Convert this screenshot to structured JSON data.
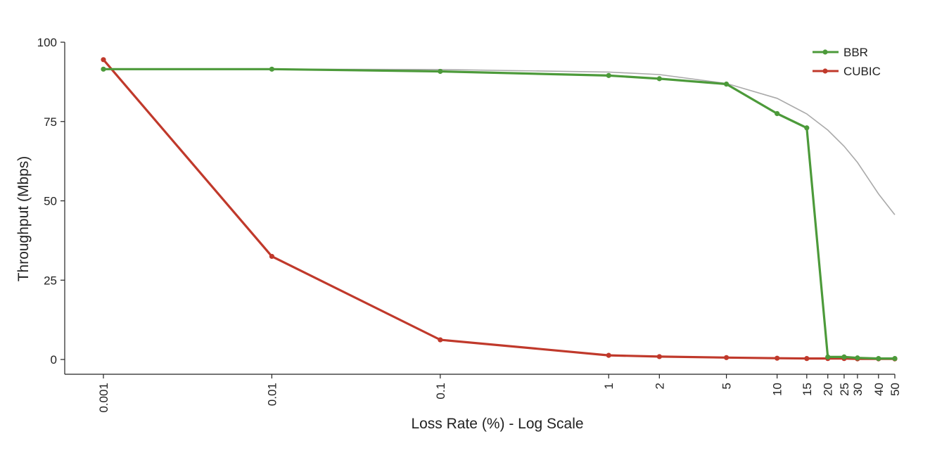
{
  "chart_data": {
    "type": "line",
    "xlabel": "Loss Rate (%) - Log Scale",
    "ylabel": "Throughput (Mbps)",
    "x_scale": "log",
    "ylim": [
      0,
      100
    ],
    "y_ticks": [
      0,
      25,
      50,
      75,
      100
    ],
    "x_ticks": [
      0.001,
      0.01,
      0.1,
      1,
      2,
      5,
      10,
      15,
      20,
      25,
      30,
      40,
      50
    ],
    "x_tick_labels": [
      "0.001",
      "0.01",
      "0.1",
      "1",
      "2",
      "5",
      "10",
      "15",
      "20",
      "25",
      "30",
      "40",
      "50"
    ],
    "grid": false,
    "legend_position": "top-right",
    "series": [
      {
        "name": "BBR",
        "color": "#4c9a3a",
        "x": [
          0.001,
          0.01,
          0.1,
          1,
          2,
          5,
          10,
          15,
          20,
          25,
          30,
          40,
          50
        ],
        "y": [
          91.5,
          91.5,
          90.8,
          89.5,
          88.5,
          86.8,
          77.5,
          73,
          0.8,
          0.8,
          0.5,
          0.3,
          0.3
        ]
      },
      {
        "name": "CUBIC",
        "color": "#c0392b",
        "x": [
          0.001,
          0.01,
          0.1,
          1,
          2,
          5,
          10,
          15,
          20,
          25,
          30,
          40,
          50
        ],
        "y": [
          94.5,
          32.5,
          6.2,
          1.3,
          0.9,
          0.6,
          0.4,
          0.3,
          0.3,
          0.3,
          0.2,
          0.2,
          0.2
        ]
      }
    ],
    "reference_curve": {
      "color": "#aaaaaa",
      "x": [
        0.001,
        0.01,
        0.1,
        1,
        2,
        5,
        10,
        15,
        20,
        25,
        30,
        40,
        50
      ],
      "y": [
        91.5,
        91.5,
        91.4,
        90.6,
        89.8,
        87.0,
        82.3,
        77.4,
        72.3,
        67.2,
        62.1,
        52.2,
        45.6
      ]
    }
  }
}
